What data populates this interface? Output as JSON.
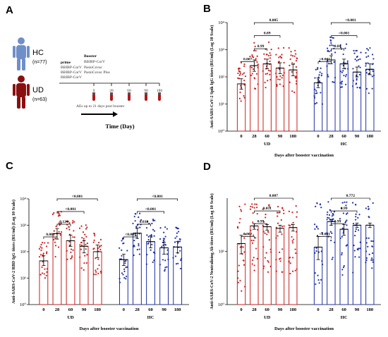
{
  "colors": {
    "ud": "#cc1f1f",
    "hc": "#1f2fa8",
    "ud_icon": "#8a1010",
    "hc_icon": "#6f8fc8"
  },
  "panel_a": {
    "label": "A",
    "hc_label": "HC",
    "hc_n": "(n=77)",
    "ud_label": "UD",
    "ud_n": "(n=63)",
    "prime_label": "prime",
    "booster_label": "Booster",
    "regimen_1_prime": "BBIBP-CorV",
    "regimen_1_booster": "BBIBP-CorV",
    "regimen_2_prime": "BBIBP-CorV",
    "regimen_2_booster": "PastoCovac",
    "regimen_3_prime": "BBIBP-CorV",
    "regimen_3_booster": "PastoCovac Plus",
    "timepoints": [
      "0",
      "28",
      "60",
      "90",
      "180"
    ],
    "ae_note": "AEs up to 21 days post booster",
    "time_label": "Time (Day)"
  },
  "chart_data": [
    {
      "panel": "B",
      "type": "bar",
      "ylabel": "Anti-SARS-CoV-2 Spik IgG titers (RU/ml) (Log 10 Scale)",
      "xlabel": "Days after booster vaccination",
      "yscale": "log",
      "ylim": [
        1,
        10000
      ],
      "yticks": [
        "10⁰",
        "10¹",
        "10²",
        "10³",
        "10⁴"
      ],
      "groups": [
        "UD",
        "HC"
      ],
      "categories": [
        "0",
        "28",
        "60",
        "90",
        "180"
      ],
      "series": [
        {
          "values": [
            55,
            260,
            300,
            210,
            180
          ],
          "errors": [
            [
              35,
              85
            ],
            [
              160,
              420
            ],
            [
              200,
              450
            ],
            [
              130,
              330
            ],
            [
              110,
              290
            ]
          ]
        },
        {
          "values": [
            60,
            420,
            300,
            150,
            190
          ],
          "errors": [
            [
              40,
              90
            ],
            [
              300,
              600
            ],
            [
              200,
              450
            ],
            [
              100,
              230
            ],
            [
              120,
              300
            ]
          ]
        }
      ],
      "comparisons": [
        {
          "group": 0,
          "from": 0,
          "to": 1,
          "label": "0.007"
        },
        {
          "group": 0,
          "from": 1,
          "to": 2,
          "label": "0.99"
        },
        {
          "group": 0,
          "from": 1,
          "to": 3,
          "label": "0.89"
        },
        {
          "group": 0,
          "from": 1,
          "to": 4,
          "label": "0.005"
        },
        {
          "group": 1,
          "from": 0,
          "to": 1,
          "label": "<0.001"
        },
        {
          "group": 1,
          "from": 1,
          "to": 2,
          "label": "0.84"
        },
        {
          "group": 1,
          "from": 1,
          "to": 3,
          "label": "<0.001"
        },
        {
          "group": 1,
          "from": 1,
          "to": 4,
          "label": "<0.001"
        }
      ]
    },
    {
      "panel": "C",
      "type": "bar",
      "ylabel": "Anti-SARS-CoV-2 RBD IgG titers (RU/ml) (Log 10 Scale)",
      "xlabel": "Days after booster vaccination",
      "yscale": "log",
      "ylim": [
        1,
        10000
      ],
      "yticks": [
        "10⁰",
        "10¹",
        "10²",
        "10³",
        "10⁴"
      ],
      "groups": [
        "UD",
        "HC"
      ],
      "categories": [
        "0",
        "28",
        "60",
        "90",
        "180"
      ],
      "series": [
        {
          "values": [
            45,
            480,
            260,
            160,
            100
          ],
          "errors": [
            [
              30,
              70
            ],
            [
              300,
              750
            ],
            [
              160,
              420
            ],
            [
              90,
              260
            ],
            [
              60,
              180
            ]
          ]
        },
        {
          "values": [
            50,
            500,
            240,
            140,
            150
          ],
          "errors": [
            [
              30,
              80
            ],
            [
              320,
              780
            ],
            [
              140,
              400
            ],
            [
              80,
              230
            ],
            [
              90,
              240
            ]
          ]
        }
      ],
      "comparisons": [
        {
          "group": 0,
          "from": 0,
          "to": 1,
          "label": "0.001"
        },
        {
          "group": 0,
          "from": 1,
          "to": 2,
          "label": "0.124"
        },
        {
          "group": 0,
          "from": 1,
          "to": 3,
          "label": "<0.001"
        },
        {
          "group": 0,
          "from": 1,
          "to": 4,
          "label": "<0.001"
        },
        {
          "group": 1,
          "from": 0,
          "to": 1,
          "label": "<0.001"
        },
        {
          "group": 1,
          "from": 1,
          "to": 2,
          "label": "0.038"
        },
        {
          "group": 1,
          "from": 1,
          "to": 3,
          "label": "<0.001"
        },
        {
          "group": 1,
          "from": 1,
          "to": 4,
          "label": "<0.001"
        }
      ]
    },
    {
      "panel": "D",
      "type": "bar",
      "ylabel": "Anti-SARS-CoV-2 Neutralizing Ab titers (RU/ml) (Log 10 Scale)",
      "xlabel": "Days after booster vaccination",
      "yscale": "log",
      "ylim": [
        1,
        100
      ],
      "yticks": [
        "10⁰",
        "10¹"
      ],
      "groups": [
        "UD",
        "HC"
      ],
      "categories": [
        "0",
        "28",
        "60",
        "90",
        "180"
      ],
      "series": [
        {
          "values": [
            14,
            30,
            29,
            27,
            28
          ],
          "errors": [
            [
              9,
              20
            ],
            [
              26,
              33
            ],
            [
              25,
              32
            ],
            [
              23,
              31
            ],
            [
              24,
              32
            ]
          ]
        },
        {
          "values": [
            12,
            36,
            26,
            31,
            31
          ],
          "errors": [
            [
              7,
              19
            ],
            [
              31,
              40
            ],
            [
              20,
              32
            ],
            [
              28,
              34
            ],
            [
              28,
              34
            ]
          ]
        }
      ],
      "comparisons": [
        {
          "group": 0,
          "from": 0,
          "to": 1,
          "label": "0.002"
        },
        {
          "group": 0,
          "from": 1,
          "to": 2,
          "label": "0.99"
        },
        {
          "group": 0,
          "from": 1,
          "to": 3,
          "label": "0.051"
        },
        {
          "group": 0,
          "from": 1,
          "to": 4,
          "label": "0.007"
        },
        {
          "group": 1,
          "from": 0,
          "to": 1,
          "label": "<0.001"
        },
        {
          "group": 1,
          "from": 1,
          "to": 2,
          "label": "0.99"
        },
        {
          "group": 1,
          "from": 1,
          "to": 3,
          "label": "0.99"
        },
        {
          "group": 1,
          "from": 1,
          "to": 4,
          "label": "0.772"
        }
      ]
    }
  ]
}
